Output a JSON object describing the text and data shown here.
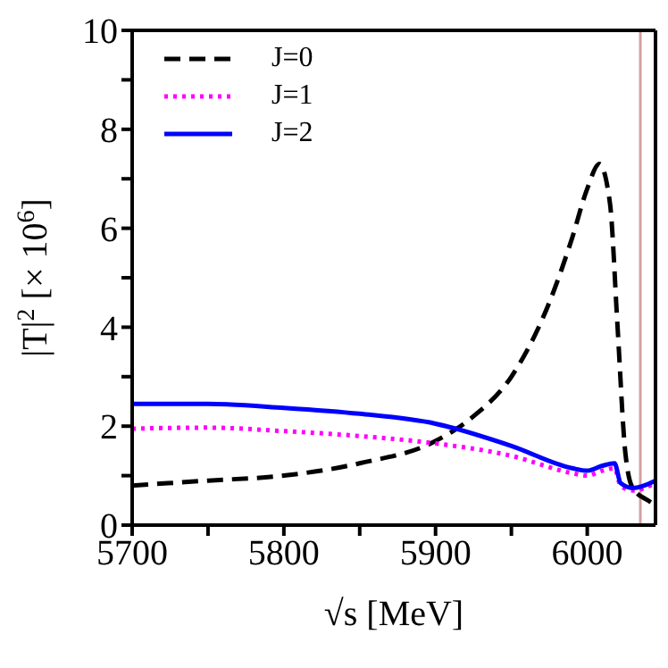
{
  "chart_data": {
    "type": "line",
    "xlabel": "√s [MeV]",
    "ylabel": "|T|$^{2}$ [× 10$^{6}$]",
    "xlim": [
      5700,
      6045
    ],
    "ylim": [
      0,
      10
    ],
    "xticks": [
      5700,
      {
        "value": 5750,
        "label": null
      },
      5800,
      {
        "value": 5850,
        "label": null
      },
      5900,
      {
        "value": 5950,
        "label": null
      },
      6000
    ],
    "yticks": [
      0,
      {
        "value": 1,
        "label": null
      },
      2,
      {
        "value": 3,
        "label": null
      },
      4,
      {
        "value": 5,
        "label": null
      },
      6,
      {
        "value": 7,
        "label": null
      },
      8,
      {
        "value": 9,
        "label": null
      },
      10
    ],
    "legend": "top left",
    "marker": "none",
    "ref_lines": [
      {
        "axis": "x",
        "value": 6035,
        "color": "#d4a0a0"
      }
    ],
    "series": [
      {
        "name": "J=0",
        "color": "#000000",
        "line_style": "dashed",
        "x": [
          5700,
          5750,
          5800,
          5850,
          5900,
          5925,
          5950,
          5975,
          5990,
          6000,
          6008,
          6015,
          6020,
          6025,
          6030,
          6040,
          6045
        ],
        "values": [
          0.8,
          0.9,
          1.0,
          1.25,
          1.7,
          2.2,
          3.0,
          4.5,
          5.8,
          6.8,
          7.3,
          6.5,
          4.0,
          1.5,
          0.75,
          0.5,
          0.4
        ]
      },
      {
        "name": "J=1",
        "color": "#ff00ff",
        "line_style": "dotted",
        "x": [
          5700,
          5750,
          5800,
          5850,
          5900,
          5950,
          5990,
          6000,
          6010,
          6018,
          6022,
          6030,
          6045
        ],
        "values": [
          1.95,
          1.97,
          1.9,
          1.8,
          1.65,
          1.4,
          1.05,
          1.0,
          1.1,
          1.15,
          0.8,
          0.7,
          0.85
        ]
      },
      {
        "name": "J=2",
        "color": "#0000ff",
        "line_style": "solid",
        "x": [
          5700,
          5750,
          5800,
          5850,
          5900,
          5950,
          5990,
          6000,
          6010,
          6018,
          6022,
          6030,
          6045
        ],
        "values": [
          2.45,
          2.45,
          2.37,
          2.25,
          2.05,
          1.6,
          1.15,
          1.1,
          1.2,
          1.25,
          0.85,
          0.75,
          0.9
        ]
      }
    ]
  }
}
